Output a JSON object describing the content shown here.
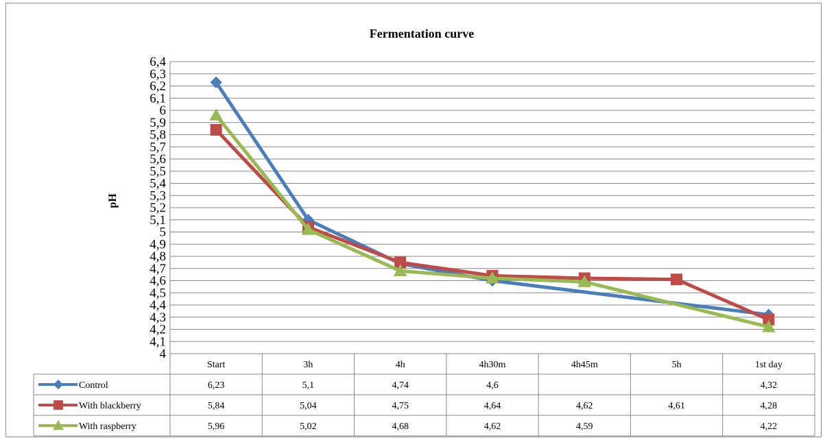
{
  "chart_data": {
    "type": "line",
    "title": "Fermentation curve",
    "ylabel": "pH",
    "xlabel": "",
    "categories": [
      "Start",
      "3h",
      "4h",
      "4h30m",
      "4h45m",
      "5h",
      "1st day"
    ],
    "ylim": [
      4,
      6.4
    ],
    "ytick_step": 0.1,
    "ytick_labels": [
      "4",
      "4,1",
      "4,2",
      "4,3",
      "4,4",
      "4,5",
      "4,6",
      "4,7",
      "4,8",
      "4,9",
      "5",
      "5,1",
      "5,2",
      "5,3",
      "5,4",
      "5,5",
      "5,6",
      "5,7",
      "5,8",
      "5,9",
      "6",
      "6,1",
      "6,2",
      "6,3",
      "6,4"
    ],
    "grid": true,
    "legend": "data-table-left",
    "series": [
      {
        "name": "Control",
        "color": "#4a7ebb",
        "marker": "diamond",
        "values": [
          6.23,
          5.1,
          4.74,
          4.6,
          null,
          null,
          4.32
        ],
        "labels": [
          "6,23",
          "5,1",
          "4,74",
          "4,6",
          "",
          "",
          "4,32"
        ]
      },
      {
        "name": "With blackberry",
        "color": "#be4b48",
        "marker": "square",
        "values": [
          5.84,
          5.04,
          4.75,
          4.64,
          4.62,
          4.61,
          4.28
        ],
        "labels": [
          "5,84",
          "5,04",
          "4,75",
          "4,64",
          "4,62",
          "4,61",
          "4,28"
        ]
      },
      {
        "name": "With raspberry",
        "color": "#98b954",
        "marker": "triangle",
        "values": [
          5.96,
          5.02,
          4.68,
          4.62,
          4.59,
          null,
          4.22
        ],
        "labels": [
          "5,96",
          "5,02",
          "4,68",
          "4,62",
          "4,59",
          "",
          "4,22"
        ]
      }
    ]
  }
}
